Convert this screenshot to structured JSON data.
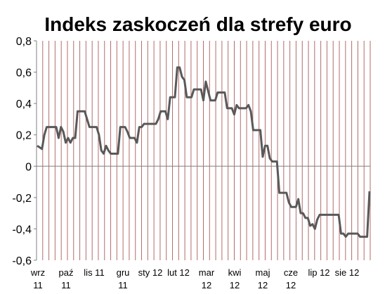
{
  "chart_data": {
    "type": "line",
    "title": "Indeks zaskoczeń dla strefy euro",
    "xlabel": "",
    "ylabel": "",
    "ylim": [
      -0.6,
      0.8
    ],
    "yticks": [
      "0,8",
      "0,6",
      "0,4",
      "0,2",
      "0",
      "-0,2",
      "-0,4",
      "-0,6"
    ],
    "xticks": [
      [
        "wrz",
        "11"
      ],
      [
        "paź",
        "11"
      ],
      [
        "lis 11",
        ""
      ],
      [
        "gru",
        "11"
      ],
      [
        "sty 12",
        ""
      ],
      [
        "lut 12",
        ""
      ],
      [
        "mar",
        "12"
      ],
      [
        "kwi",
        "12"
      ],
      [
        "maj",
        "12"
      ],
      [
        "cze",
        "12"
      ],
      [
        "lip 12",
        ""
      ],
      [
        "sie 12",
        ""
      ]
    ],
    "grid": "vertical",
    "line_color": "#595959",
    "grid_color": "#b36b6b",
    "series": [
      {
        "values": [
          0.13,
          0.12,
          0.11,
          0.2,
          0.25,
          0.25,
          0.25,
          0.25,
          0.25,
          0.18,
          0.25,
          0.22,
          0.15,
          0.18,
          0.15,
          0.18,
          0.18,
          0.35,
          0.35,
          0.35,
          0.35,
          0.3,
          0.25,
          0.25,
          0.25,
          0.25,
          0.2,
          0.1,
          0.08,
          0.13,
          0.1,
          0.08,
          0.08,
          0.08,
          0.08,
          0.25,
          0.25,
          0.25,
          0.22,
          0.18,
          0.18,
          0.18,
          0.15,
          0.25,
          0.25,
          0.27,
          0.27,
          0.27,
          0.27,
          0.27,
          0.27,
          0.3,
          0.35,
          0.35,
          0.35,
          0.3,
          0.44,
          0.44,
          0.44,
          0.63,
          0.63,
          0.57,
          0.55,
          0.44,
          0.44,
          0.44,
          0.49,
          0.49,
          0.49,
          0.49,
          0.42,
          0.54,
          0.48,
          0.42,
          0.42,
          0.42,
          0.47,
          0.47,
          0.47,
          0.47,
          0.37,
          0.37,
          0.37,
          0.33,
          0.39,
          0.37,
          0.37,
          0.37,
          0.37,
          0.39,
          0.35,
          0.23,
          0.23,
          0.23,
          0.23,
          0.06,
          0.13,
          0.13,
          0.05,
          0.03,
          0.03,
          0.03,
          -0.17,
          -0.17,
          -0.17,
          -0.17,
          -0.23,
          -0.26,
          -0.26,
          -0.26,
          -0.21,
          -0.3,
          -0.3,
          -0.33,
          -0.33,
          -0.38,
          -0.37,
          -0.4,
          -0.34,
          -0.31,
          -0.31,
          -0.31,
          -0.31,
          -0.31,
          -0.31,
          -0.31,
          -0.31,
          -0.31,
          -0.43,
          -0.43,
          -0.45,
          -0.43,
          -0.43,
          -0.43,
          -0.43,
          -0.43,
          -0.45,
          -0.45,
          -0.45,
          -0.45,
          -0.16
        ]
      }
    ]
  }
}
